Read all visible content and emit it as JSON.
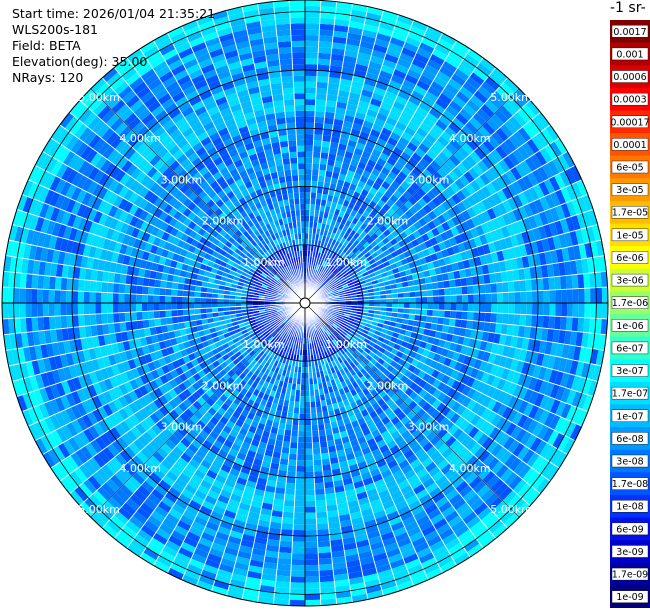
{
  "header": {
    "start_time": "Start time: 2026/01/04 21:35:21",
    "instrument": "WLS200s-181",
    "field": "Field: BETA",
    "elevation": "Elevation(deg): 35.00",
    "nrays": "NRays: 120"
  },
  "colorbar": {
    "unit_title": "-1 sr-",
    "labels": [
      "0.0017",
      "0.001",
      "0.0006",
      "0.0003",
      "0.00017",
      "0.0001",
      "6e-05",
      "3e-05",
      "1.7e-05",
      "1e-05",
      "6e-06",
      "3e-06",
      "1.7e-06",
      "1e-06",
      "6e-07",
      "3e-07",
      "1.7e-07",
      "1e-07",
      "6e-08",
      "3e-08",
      "1.7e-08",
      "1e-08",
      "6e-09",
      "3e-09",
      "1.7e-09",
      "1e-09"
    ],
    "colors": [
      "#800000",
      "#b00000",
      "#d80000",
      "#ff0000",
      "#ff2a00",
      "#ff5500",
      "#ff7700",
      "#ff9900",
      "#ffbb00",
      "#ffdd00",
      "#ffff00",
      "#ccff33",
      "#99ff66",
      "#66ff99",
      "#33ffcc",
      "#00ffff",
      "#00ddff",
      "#00bbff",
      "#0099ff",
      "#0077ff",
      "#0055ff",
      "#0033ff",
      "#0011ee",
      "#0000cc",
      "#0000a0",
      "#000080"
    ]
  },
  "chart_data": {
    "type": "heatmap",
    "projection": "polar (PPI)",
    "n_rays": 120,
    "range_rings_km": [
      1,
      2,
      3,
      4,
      5
    ],
    "ring_labels": [
      "1.00km",
      "2.00km",
      "3.00km",
      "4.00km",
      "5.00km"
    ],
    "max_range_km": 5.2,
    "background_level": "1.7e-08",
    "enhanced_rings": [
      {
        "range_km": 3.6,
        "level": "1.7e-07"
      },
      {
        "range_km": 5.05,
        "level": "3e-07"
      }
    ],
    "core_level": "1e-08"
  }
}
